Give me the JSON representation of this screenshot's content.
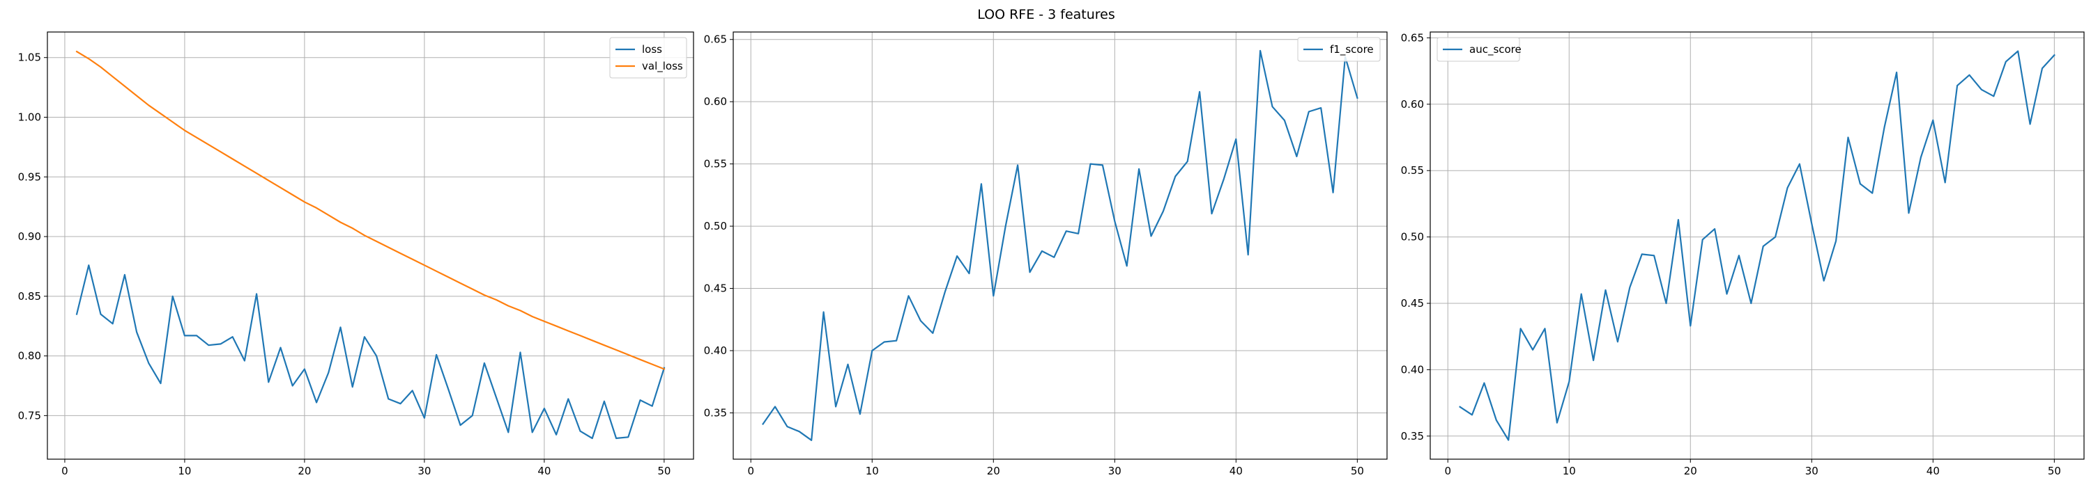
{
  "figure": {
    "title": "LOO RFE - 3 features"
  },
  "colors": {
    "blue": "#1f77b4",
    "orange": "#ff7f0e",
    "grid": "#b0b0b0",
    "axes": "#000000"
  },
  "chart_data": [
    {
      "type": "line",
      "title": "",
      "xlabel": "",
      "ylabel": "",
      "grid": true,
      "legend": "top-right",
      "xlim": [
        -1.45,
        52.45
      ],
      "ylim": [
        0.7135,
        1.0714
      ],
      "xticks": [
        0,
        10,
        20,
        30,
        40,
        50
      ],
      "yticks": [
        0.75,
        0.8,
        0.85,
        0.9,
        0.95,
        1.0,
        1.05
      ],
      "ytick_decimals": 2,
      "x": [
        1,
        2,
        3,
        4,
        5,
        6,
        7,
        8,
        9,
        10,
        11,
        12,
        13,
        14,
        15,
        16,
        17,
        18,
        19,
        20,
        21,
        22,
        23,
        24,
        25,
        26,
        27,
        28,
        29,
        30,
        31,
        32,
        33,
        34,
        35,
        36,
        37,
        38,
        39,
        40,
        41,
        42,
        43,
        44,
        45,
        46,
        47,
        48,
        49,
        50
      ],
      "series": [
        {
          "name": "loss",
          "color": "#1f77b4",
          "values": [
            0.835,
            0.876,
            0.835,
            0.827,
            0.868,
            0.82,
            0.794,
            0.777,
            0.85,
            0.817,
            0.817,
            0.809,
            0.81,
            0.816,
            0.796,
            0.852,
            0.778,
            0.807,
            0.775,
            0.789,
            0.761,
            0.786,
            0.824,
            0.774,
            0.816,
            0.8,
            0.764,
            0.76,
            0.771,
            0.748,
            0.801,
            0.772,
            0.742,
            0.75,
            0.794,
            0.765,
            0.736,
            0.803,
            0.736,
            0.756,
            0.734,
            0.764,
            0.737,
            0.731,
            0.762,
            0.731,
            0.732,
            0.763,
            0.758,
            0.79
          ]
        },
        {
          "name": "val_loss",
          "color": "#ff7f0e",
          "values": [
            1.055,
            1.049,
            1.042,
            1.034,
            1.026,
            1.018,
            1.01,
            1.003,
            0.996,
            0.989,
            0.983,
            0.977,
            0.971,
            0.965,
            0.959,
            0.953,
            0.947,
            0.941,
            0.935,
            0.929,
            0.924,
            0.918,
            0.912,
            0.907,
            0.901,
            0.896,
            0.891,
            0.886,
            0.881,
            0.876,
            0.871,
            0.866,
            0.861,
            0.856,
            0.851,
            0.847,
            0.842,
            0.838,
            0.833,
            0.829,
            0.825,
            0.821,
            0.817,
            0.813,
            0.809,
            0.805,
            0.801,
            0.797,
            0.793,
            0.789
          ]
        }
      ]
    },
    {
      "type": "line",
      "title": "",
      "xlabel": "",
      "ylabel": "",
      "grid": true,
      "legend": "top-right",
      "xlim": [
        -1.45,
        52.45
      ],
      "ylim": [
        0.3128,
        0.656
      ],
      "xticks": [
        0,
        10,
        20,
        30,
        40,
        50
      ],
      "yticks": [
        0.35,
        0.4,
        0.45,
        0.5,
        0.55,
        0.6,
        0.65
      ],
      "ytick_decimals": 2,
      "x": [
        1,
        2,
        3,
        4,
        5,
        6,
        7,
        8,
        9,
        10,
        11,
        12,
        13,
        14,
        15,
        16,
        17,
        18,
        19,
        20,
        21,
        22,
        23,
        24,
        25,
        26,
        27,
        28,
        29,
        30,
        31,
        32,
        33,
        34,
        35,
        36,
        37,
        38,
        39,
        40,
        41,
        42,
        43,
        44,
        45,
        46,
        47,
        48,
        49,
        50
      ],
      "series": [
        {
          "name": "f1_score",
          "color": "#1f77b4",
          "values": [
            0.341,
            0.355,
            0.339,
            0.335,
            0.328,
            0.431,
            0.355,
            0.389,
            0.349,
            0.4,
            0.407,
            0.408,
            0.444,
            0.424,
            0.414,
            0.447,
            0.476,
            0.462,
            0.534,
            0.444,
            0.5,
            0.549,
            0.463,
            0.48,
            0.475,
            0.496,
            0.494,
            0.55,
            0.549,
            0.504,
            0.468,
            0.546,
            0.492,
            0.512,
            0.54,
            0.552,
            0.608,
            0.51,
            0.538,
            0.57,
            0.477,
            0.641,
            0.596,
            0.585,
            0.556,
            0.592,
            0.595,
            0.527,
            0.636,
            0.603
          ]
        }
      ]
    },
    {
      "type": "line",
      "title": "",
      "xlabel": "",
      "ylabel": "",
      "grid": true,
      "legend": "top-left",
      "xlim": [
        -1.45,
        52.45
      ],
      "ylim": [
        0.3326,
        0.6544
      ],
      "xticks": [
        0,
        10,
        20,
        30,
        40,
        50
      ],
      "yticks": [
        0.35,
        0.4,
        0.45,
        0.5,
        0.55,
        0.6,
        0.65
      ],
      "ytick_decimals": 2,
      "x": [
        1,
        2,
        3,
        4,
        5,
        6,
        7,
        8,
        9,
        10,
        11,
        12,
        13,
        14,
        15,
        16,
        17,
        18,
        19,
        20,
        21,
        22,
        23,
        24,
        25,
        26,
        27,
        28,
        29,
        30,
        31,
        32,
        33,
        34,
        35,
        36,
        37,
        38,
        39,
        40,
        41,
        42,
        43,
        44,
        45,
        46,
        47,
        48,
        49,
        50
      ],
      "series": [
        {
          "name": "auc_score",
          "color": "#1f77b4",
          "values": [
            0.372,
            0.366,
            0.39,
            0.362,
            0.347,
            0.431,
            0.415,
            0.431,
            0.36,
            0.391,
            0.457,
            0.407,
            0.46,
            0.421,
            0.462,
            0.487,
            0.486,
            0.45,
            0.513,
            0.433,
            0.498,
            0.506,
            0.457,
            0.486,
            0.45,
            0.493,
            0.5,
            0.537,
            0.555,
            0.51,
            0.467,
            0.497,
            0.575,
            0.54,
            0.533,
            0.583,
            0.624,
            0.518,
            0.56,
            0.588,
            0.541,
            0.614,
            0.622,
            0.611,
            0.606,
            0.632,
            0.64,
            0.585,
            0.627,
            0.637
          ]
        }
      ]
    }
  ]
}
